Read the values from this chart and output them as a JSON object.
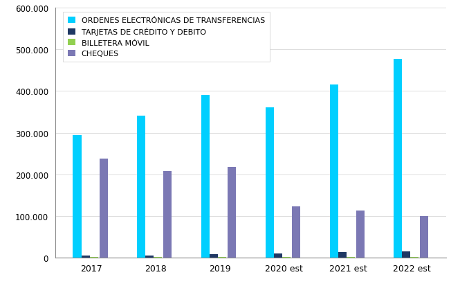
{
  "categories": [
    "2017",
    "2018",
    "2019",
    "2020 est",
    "2021 est",
    "2022 est"
  ],
  "ordenes": [
    295000,
    340000,
    390000,
    360000,
    415000,
    477000
  ],
  "tarjetas": [
    5000,
    5000,
    7000,
    9000,
    12000,
    15000
  ],
  "billetera": [
    200,
    200,
    200,
    200,
    200,
    200
  ],
  "cheques": [
    237000,
    207000,
    217000,
    122000,
    112000,
    100000
  ],
  "colors": {
    "ordenes": "#00CFFF",
    "tarjetas": "#1F3864",
    "billetera": "#92D050",
    "cheques": "#7B78B4"
  },
  "legend_labels": [
    "ORDENES ELECTRÓNICAS DE TRANSFERENCIAS",
    "TARJETAS DE CRÉDITO Y DEBITO",
    "BILLETERA MÓVIL",
    "CHEQUES"
  ],
  "ylim": [
    0,
    600000
  ],
  "yticks": [
    0,
    100000,
    200000,
    300000,
    400000,
    500000,
    600000
  ],
  "ytick_labels": [
    "0",
    "100.000",
    "200.000",
    "300.000",
    "400.000",
    "500.000",
    "600.000"
  ],
  "bar_width": 0.13,
  "background_color": "#FFFFFF",
  "grid_color": "#DDDDDD"
}
